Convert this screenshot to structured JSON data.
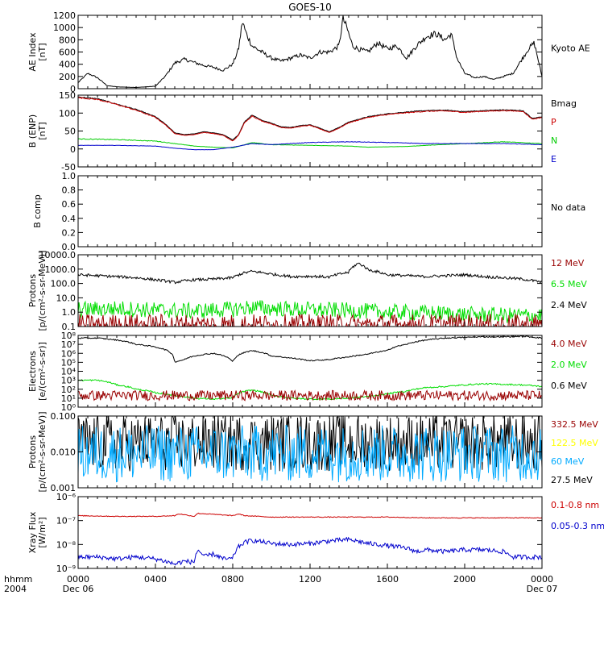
{
  "figure": {
    "title": "GOES-10",
    "time_axis": {
      "prefix_top": "hhmm",
      "prefix_bottom": "2004",
      "ticks": [
        {
          "hour": 0,
          "label": "0000",
          "sublabel": "Dec 06"
        },
        {
          "hour": 4,
          "label": "0400",
          "sublabel": ""
        },
        {
          "hour": 8,
          "label": "0800",
          "sublabel": ""
        },
        {
          "hour": 12,
          "label": "1200",
          "sublabel": ""
        },
        {
          "hour": 16,
          "label": "1600",
          "sublabel": ""
        },
        {
          "hour": 20,
          "label": "2000",
          "sublabel": ""
        },
        {
          "hour": 24,
          "label": "0000",
          "sublabel": "Dec 07"
        }
      ],
      "range_hours": [
        0,
        24
      ]
    }
  },
  "chart_data": [
    {
      "id": "ae",
      "type": "line",
      "ylabel_lines": [
        "AE Index",
        "[nT]"
      ],
      "ylim": [
        0,
        1200
      ],
      "scale": "linear",
      "yticks": [
        0,
        200,
        400,
        600,
        800,
        1000,
        1200
      ],
      "yticklabels": [
        "0",
        "200",
        "400",
        "600",
        "800",
        "1000",
        "1200"
      ],
      "legend": [
        {
          "text": "Kyoto AE",
          "color": "#000000"
        }
      ],
      "series": [
        {
          "name": "Kyoto AE",
          "color": "#000000",
          "noise": 0.06,
          "x": [
            0,
            0.5,
            1,
            1.5,
            2,
            3,
            4,
            4.5,
            5,
            5.5,
            6,
            6.5,
            7,
            7.5,
            8,
            8.3,
            8.5,
            8.7,
            9,
            9.5,
            10,
            10.5,
            11,
            11.5,
            12,
            12.5,
            13,
            13.5,
            13.7,
            13.9,
            14.2,
            14.5,
            15,
            15.5,
            16,
            16.5,
            17,
            17.5,
            18,
            18.5,
            19,
            19.3,
            19.6,
            20,
            20.5,
            21,
            21.5,
            22,
            22.5,
            23,
            23.3,
            23.6,
            24
          ],
          "y": [
            100,
            250,
            180,
            50,
            30,
            20,
            40,
            200,
            420,
            480,
            430,
            380,
            350,
            300,
            400,
            650,
            1100,
            900,
            700,
            600,
            500,
            450,
            500,
            550,
            500,
            600,
            600,
            700,
            1150,
            1000,
            700,
            650,
            600,
            750,
            650,
            700,
            500,
            700,
            850,
            900,
            800,
            900,
            500,
            250,
            180,
            200,
            150,
            200,
            250,
            500,
            650,
            750,
            200
          ]
        }
      ]
    },
    {
      "id": "bfield",
      "type": "line",
      "ylabel_lines": [
        "B (ENP)",
        "[nT]"
      ],
      "ylim": [
        -50,
        150
      ],
      "scale": "linear",
      "yticks": [
        -50,
        0,
        50,
        100,
        150
      ],
      "yticklabels": [
        "-50",
        "0",
        "50",
        "100",
        "150"
      ],
      "legend": [
        {
          "text": "Bmag",
          "color": "#000000"
        },
        {
          "text": "P",
          "color": "#cc0000"
        },
        {
          "text": "N",
          "color": "#00cc00"
        },
        {
          "text": "E",
          "color": "#0000cc"
        }
      ],
      "series": [
        {
          "name": "Bmag",
          "color": "#000000",
          "noise": 0.01,
          "x": [
            0,
            1,
            2,
            3,
            4,
            4.5,
            5,
            5.5,
            6,
            6.5,
            7,
            7.5,
            8,
            8.3,
            8.6,
            9,
            9.5,
            10,
            10.5,
            11,
            11.5,
            12,
            12.5,
            13,
            13.5,
            14,
            15,
            16,
            17,
            18,
            19,
            20,
            21,
            22,
            23,
            23.5,
            24
          ],
          "y": [
            145,
            140,
            125,
            110,
            90,
            70,
            45,
            40,
            42,
            48,
            45,
            40,
            25,
            40,
            75,
            95,
            80,
            72,
            62,
            60,
            65,
            68,
            58,
            48,
            60,
            75,
            90,
            98,
            103,
            107,
            108,
            104,
            107,
            109,
            107,
            85,
            90
          ]
        },
        {
          "name": "P",
          "color": "#cc0000",
          "noise": 0.012,
          "x": [
            0,
            1,
            2,
            3,
            4,
            4.5,
            5,
            5.5,
            6,
            6.5,
            7,
            7.5,
            8,
            8.3,
            8.6,
            9,
            9.5,
            10,
            10.5,
            11,
            11.5,
            12,
            12.5,
            13,
            13.5,
            14,
            15,
            16,
            17,
            18,
            19,
            20,
            21,
            22,
            23,
            23.5,
            24
          ],
          "y": [
            143,
            138,
            124,
            108,
            88,
            68,
            43,
            38,
            40,
            46,
            43,
            38,
            22,
            38,
            72,
            92,
            78,
            70,
            60,
            58,
            63,
            66,
            56,
            46,
            58,
            73,
            88,
            96,
            101,
            105,
            106,
            102,
            105,
            107,
            105,
            83,
            88
          ]
        },
        {
          "name": "N",
          "color": "#00cc00",
          "noise": 0.04,
          "x": [
            0,
            2,
            4,
            5,
            6,
            7,
            8,
            8.5,
            9,
            10,
            12,
            14,
            15,
            16,
            17,
            18,
            20,
            22,
            24
          ],
          "y": [
            28,
            26,
            22,
            15,
            8,
            5,
            3,
            10,
            18,
            12,
            10,
            8,
            5,
            6,
            7,
            10,
            15,
            20,
            15
          ]
        },
        {
          "name": "E",
          "color": "#0000cc",
          "noise": 0.04,
          "x": [
            0,
            2,
            4,
            5,
            6,
            7,
            8,
            9,
            10,
            12,
            14,
            16,
            18,
            20,
            22,
            24
          ],
          "y": [
            10,
            10,
            8,
            2,
            -2,
            -2,
            5,
            15,
            12,
            18,
            20,
            18,
            15,
            15,
            15,
            12
          ]
        }
      ]
    },
    {
      "id": "bcomp",
      "type": "line",
      "ylabel_lines": [
        "B comp"
      ],
      "ylim": [
        0,
        1
      ],
      "scale": "linear",
      "yticks": [
        0,
        0.2,
        0.4,
        0.6,
        0.8,
        1.0
      ],
      "yticklabels": [
        "0.0",
        "0.2",
        "0.4",
        "0.6",
        "0.8",
        "1.0"
      ],
      "legend": [
        {
          "text": "No data",
          "color": "#000000"
        }
      ],
      "series": []
    },
    {
      "id": "protons_low",
      "type": "line",
      "ylabel_lines": [
        "Protons",
        "[p/(cm²-s-sr-MeV)]"
      ],
      "ylim": [
        0.1,
        10000
      ],
      "scale": "log",
      "yticks": [
        0.1,
        1,
        10,
        100,
        1000,
        10000
      ],
      "yticklabels": [
        "0.1",
        "1.0",
        "10.0",
        "100.0",
        "1000.0",
        "10000.0"
      ],
      "legend": [
        {
          "text": "12 MeV",
          "color": "#990000"
        },
        {
          "text": "6.5 MeV",
          "color": "#00dd00"
        },
        {
          "text": "2.4 MeV",
          "color": "#000000"
        }
      ],
      "series": [
        {
          "name": "2.4 MeV",
          "color": "#000000",
          "noise": 0.06,
          "x": [
            0,
            1,
            2,
            3,
            4,
            5,
            6,
            7,
            8,
            8.5,
            9,
            10,
            11,
            12,
            13,
            14,
            14.5,
            15,
            16,
            17,
            18,
            19,
            20,
            21,
            22,
            23,
            24
          ],
          "y": [
            400,
            350,
            300,
            250,
            180,
            120,
            180,
            200,
            250,
            500,
            700,
            450,
            300,
            320,
            280,
            600,
            2500,
            900,
            400,
            350,
            300,
            350,
            400,
            300,
            250,
            200,
            120
          ]
        },
        {
          "name": "6.5 MeV",
          "color": "#00dd00",
          "noise": 0.35,
          "x": [
            0,
            2,
            4,
            6,
            8,
            9,
            10,
            12,
            14,
            16,
            18,
            20,
            22,
            24
          ],
          "y": [
            1.5,
            1.8,
            1.4,
            1.2,
            1.6,
            2.2,
            1.8,
            1.5,
            1.3,
            1.0,
            0.9,
            0.7,
            0.6,
            0.6
          ]
        },
        {
          "name": "12 MeV",
          "color": "#990000",
          "noise": 0.5,
          "x": [
            0,
            24
          ],
          "y": [
            0.12,
            0.12
          ]
        }
      ]
    },
    {
      "id": "electrons",
      "type": "line",
      "ylabel_lines": [
        "Electrons",
        "[e/(cm²-s-sr)]"
      ],
      "ylim": [
        1,
        100000000
      ],
      "scale": "log",
      "yticks": [
        1,
        10,
        100,
        1000,
        10000,
        100000,
        1000000,
        10000000,
        100000000
      ],
      "yticklabels": [
        "10⁰",
        "10¹",
        "10²",
        "10³",
        "10⁴",
        "10⁵",
        "10⁶",
        "10⁷",
        "10⁸"
      ],
      "legend": [
        {
          "text": "4.0 MeV",
          "color": "#990000"
        },
        {
          "text": "2.0 MeV",
          "color": "#00dd00"
        },
        {
          "text": "0.6 MeV",
          "color": "#000000"
        }
      ],
      "series": [
        {
          "name": "0.6 MeV",
          "color": "#000000",
          "noise": 0.04,
          "x": [
            0,
            1,
            2,
            3,
            4,
            5,
            5.5,
            6,
            7,
            8,
            8.5,
            9,
            10,
            11,
            12,
            13,
            14,
            15,
            16,
            17,
            18,
            19,
            20,
            21,
            22,
            23,
            24
          ],
          "y": [
            50000000,
            50000000,
            30000000,
            10000000,
            5000000,
            100000,
            200000,
            500000,
            1000000,
            100000,
            1000000,
            2000000,
            500000,
            300000,
            150000,
            200000,
            400000,
            800000,
            2000000,
            10000000,
            30000000,
            50000000,
            60000000,
            70000000,
            70000000,
            80000000,
            50000000
          ]
        },
        {
          "name": "2.0 MeV",
          "color": "#00dd00",
          "noise": 0.05,
          "x": [
            0,
            1,
            2,
            3,
            4,
            5,
            6,
            7,
            8,
            8.5,
            9,
            10,
            11,
            12,
            13,
            14,
            15,
            16,
            17,
            18,
            19,
            20,
            21,
            22,
            23,
            24
          ],
          "y": [
            1000,
            1000,
            300,
            100,
            40,
            20,
            10,
            8,
            10,
            50,
            80,
            20,
            10,
            8,
            8,
            10,
            15,
            30,
            60,
            150,
            200,
            300,
            400,
            350,
            300,
            200
          ]
        },
        {
          "name": "4.0 MeV",
          "color": "#990000",
          "noise": 0.35,
          "x": [
            0,
            24
          ],
          "y": [
            20,
            20
          ]
        }
      ]
    },
    {
      "id": "protons_high",
      "type": "line",
      "ylabel_lines": [
        "Protons",
        "[p/(cm²-s-sr-MeV)]"
      ],
      "ylim": [
        0.001,
        0.1
      ],
      "scale": "log",
      "yticks": [
        0.001,
        0.01,
        0.1
      ],
      "yticklabels": [
        "0.001",
        "0.010",
        "0.100"
      ],
      "legend": [
        {
          "text": "332.5 MeV",
          "color": "#990000"
        },
        {
          "text": "122.5 MeV",
          "color": "#ffff00"
        },
        {
          "text": "60 MeV",
          "color": "#00aaff"
        },
        {
          "text": "27.5 MeV",
          "color": "#000000"
        }
      ],
      "series": [
        {
          "name": "27.5 MeV",
          "color": "#000000",
          "noise": 0.5,
          "x": [
            0,
            24
          ],
          "y": [
            0.018,
            0.018
          ]
        },
        {
          "name": "60 MeV",
          "color": "#00aaff",
          "noise": 0.5,
          "x": [
            0,
            24
          ],
          "y": [
            0.009,
            0.009
          ]
        }
      ]
    },
    {
      "id": "xray",
      "type": "line",
      "ylabel_lines": [
        "Xray Flux",
        "[W/m²]"
      ],
      "ylim": [
        1e-09,
        1e-06
      ],
      "scale": "log",
      "yticks": [
        1e-09,
        1e-08,
        1e-07,
        1e-06
      ],
      "yticklabels": [
        "10⁻⁹",
        "10⁻⁸",
        "10⁻⁷",
        "10⁻⁶"
      ],
      "legend": [
        {
          "text": "0.1-0.8 nm",
          "color": "#cc0000"
        },
        {
          "text": "0.05-0.3 nm",
          "color": "#0000cc"
        }
      ],
      "series": [
        {
          "name": "0.1-0.8 nm",
          "color": "#cc0000",
          "noise": 0.01,
          "x": [
            0,
            2,
            4,
            5,
            5.2,
            6,
            6.2,
            8,
            8.3,
            8.6,
            10,
            12,
            14,
            16,
            18,
            20,
            22,
            24
          ],
          "y": [
            1.6e-07,
            1.5e-07,
            1.5e-07,
            1.6e-07,
            1.9e-07,
            1.5e-07,
            2e-07,
            1.6e-07,
            1.9e-07,
            1.6e-07,
            1.4e-07,
            1.4e-07,
            1.4e-07,
            1.4e-07,
            1.3e-07,
            1.3e-07,
            1.3e-07,
            1.3e-07
          ]
        },
        {
          "name": "0.05-0.3 nm",
          "color": "#0000cc",
          "noise": 0.06,
          "x": [
            0,
            1,
            2,
            3,
            4,
            5,
            5.5,
            6,
            6.2,
            6.5,
            7,
            7.5,
            8,
            8.3,
            8.6,
            9,
            10,
            11,
            12,
            13,
            14,
            15,
            16,
            17,
            17.5,
            18,
            19,
            20,
            21,
            22,
            22.5,
            23,
            24
          ],
          "y": [
            3e-09,
            3e-09,
            2.5e-09,
            3e-09,
            2.5e-09,
            1.5e-09,
            2e-09,
            1.8e-09,
            6e-09,
            3e-09,
            4e-09,
            2.5e-09,
            2.5e-09,
            8e-09,
            1.2e-08,
            1.5e-08,
            1.1e-08,
            1e-08,
            1.1e-08,
            1.4e-08,
            1.6e-08,
            1.1e-08,
            9e-09,
            7e-09,
            5e-09,
            6e-09,
            5e-09,
            6e-09,
            6e-09,
            5e-09,
            3e-09,
            3e-09,
            3e-09
          ]
        }
      ]
    }
  ]
}
